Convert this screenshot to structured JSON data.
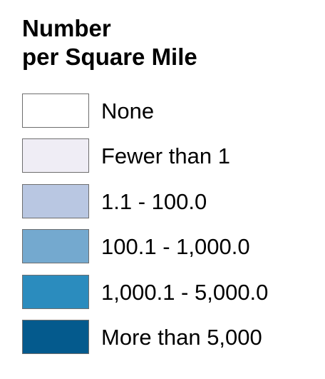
{
  "legend": {
    "title_line1": "Number",
    "title_line2": "per Square Mile",
    "items": [
      {
        "label": "None",
        "color": "#ffffff"
      },
      {
        "label": "Fewer than 1",
        "color": "#efedf5"
      },
      {
        "label": "1.1 - 100.0",
        "color": "#b9c7e2"
      },
      {
        "label": "100.1 - 1,000.0",
        "color": "#74a9cf"
      },
      {
        "label": "1,000.1 - 5,000.0",
        "color": "#2b8cbe"
      },
      {
        "label": "More than 5,000",
        "color": "#045a8d"
      }
    ]
  }
}
